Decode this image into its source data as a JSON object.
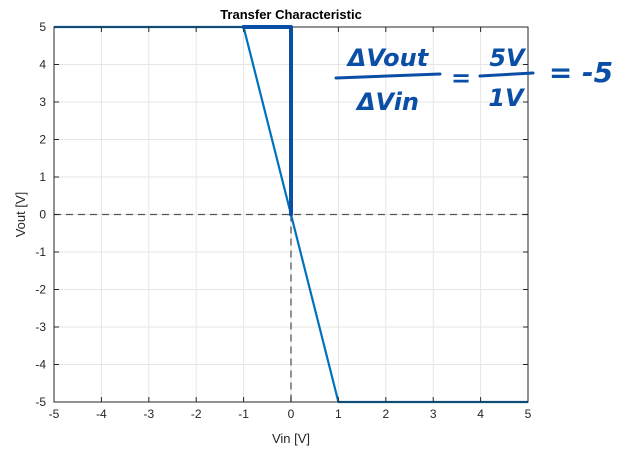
{
  "chart_data": {
    "type": "line",
    "title": "Transfer Characteristic",
    "xlabel": "Vin [V]",
    "ylabel": "Vout [V]",
    "xlim": [
      -5,
      5
    ],
    "ylim": [
      -5,
      5
    ],
    "x_ticks": [
      -5,
      -4,
      -3,
      -2,
      -1,
      0,
      1,
      2,
      3,
      4,
      5
    ],
    "y_ticks": [
      -5,
      -4,
      -3,
      -2,
      -1,
      0,
      1,
      2,
      3,
      4,
      5
    ],
    "grid": true,
    "series": [
      {
        "x": [
          -5,
          -1,
          1,
          5
        ],
        "y": [
          5,
          5,
          -5,
          -5
        ],
        "color": "#0072bd"
      }
    ],
    "reference_lines": {
      "horizontal_y": 0,
      "vertical_x": 0,
      "style": "dashed",
      "color": "#555555"
    }
  },
  "annotation": {
    "numerator": "ΔVout",
    "denominator": "ΔVin",
    "equals": "=",
    "rhs_numerator": "5V",
    "rhs_denominator": "1V",
    "result": "= -5",
    "ink_color": "#0b4ea6"
  }
}
